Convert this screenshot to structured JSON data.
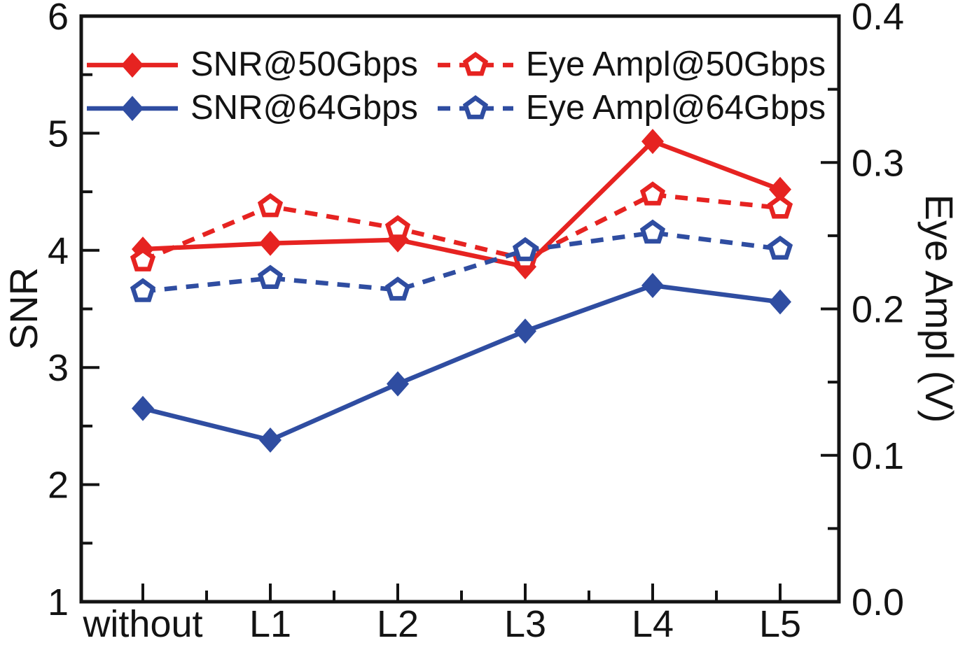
{
  "figure": {
    "background": "#ffffff",
    "text_color": "#131313"
  },
  "chart_data": {
    "type": "line",
    "categories": [
      "without",
      "L1",
      "L2",
      "L3",
      "L4",
      "L5"
    ],
    "axes": {
      "left": {
        "label": "SNR",
        "min": 1,
        "max": 6,
        "major_ticks": [
          6,
          5,
          4,
          3,
          2,
          1
        ],
        "tick_labels": [
          "6",
          "5",
          "4",
          "3",
          "2",
          "1"
        ],
        "minor_ticks": [
          5.5,
          4.5,
          3.5,
          2.5,
          1.5
        ]
      },
      "right": {
        "label": "Eye Ampl (V)",
        "min": 0,
        "max": 0.4,
        "major_ticks": [
          0.4,
          0.3,
          0.2,
          0.1,
          0.0
        ],
        "tick_labels": [
          "0.4",
          "0.3",
          "0.2",
          "0.1",
          "0.0"
        ],
        "minor_ticks": [
          0.35,
          0.25,
          0.15,
          0.05
        ]
      }
    },
    "grid": false,
    "legend": {
      "position": "top-left-inside",
      "display_order": [
        0,
        2,
        1,
        3
      ]
    },
    "series": [
      {
        "name": "SNR@50Gbps",
        "axis": "left",
        "color": "#e62321",
        "line_style": "solid",
        "marker": "filled-diamond",
        "values": [
          4.01,
          4.06,
          4.09,
          3.86,
          4.93,
          4.52
        ]
      },
      {
        "name": "SNR@64Gbps",
        "axis": "left",
        "color": "#2f4da1",
        "line_style": "solid",
        "marker": "filled-diamond",
        "values": [
          2.65,
          2.38,
          2.86,
          3.31,
          3.7,
          3.56
        ]
      },
      {
        "name": "Eye Ampl@50Gbps",
        "axis": "right",
        "color": "#e62321",
        "line_style": "dashed",
        "marker": "open-pentagon",
        "values": [
          0.233,
          0.27,
          0.255,
          0.234,
          0.278,
          0.269
        ]
      },
      {
        "name": "Eye Ampl@64Gbps",
        "axis": "right",
        "color": "#2f4da1",
        "line_style": "dashed",
        "marker": "open-pentagon",
        "values": [
          0.212,
          0.221,
          0.213,
          0.24,
          0.252,
          0.241
        ]
      }
    ]
  }
}
